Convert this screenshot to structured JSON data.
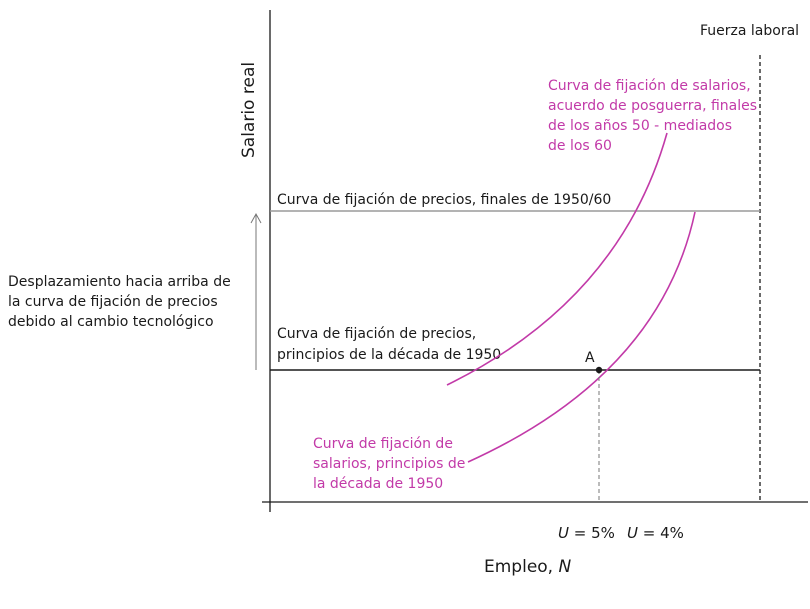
{
  "diagram": {
    "axes": {
      "y_label": "Salario real",
      "x_label_prefix": "Empleo, ",
      "x_label_var": "N"
    },
    "labor_force_label": "Fuerza laboral",
    "price_curve_late": "Curva de fijación de precios, finales de 1950/60",
    "price_curve_early": [
      "Curva de fijación de precios,",
      "principios de la década de 1950"
    ],
    "wage_curve_late": [
      "Curva de fijación de salarios,",
      "acuerdo de posguerra, finales",
      "de los años 50 - mediados",
      "de los 60"
    ],
    "wage_curve_early": [
      "Curva de fijación de",
      "salarios, principios de",
      "la década de 1950"
    ],
    "shift_note": [
      "Desplazamiento hacia arriba de",
      "la curva de fijación de precios",
      "debido al cambio tecnológico"
    ],
    "point_label": "A",
    "u_label_1": {
      "var": "U",
      "rest": " = 5%"
    },
    "u_label_2": {
      "var": "U",
      "rest": " = 4%"
    },
    "colors": {
      "wage_curve": "#c23aa8",
      "axis": "#1a1a1a",
      "price_curve_late": "#9a9a9a",
      "dashed": "#777777"
    }
  }
}
